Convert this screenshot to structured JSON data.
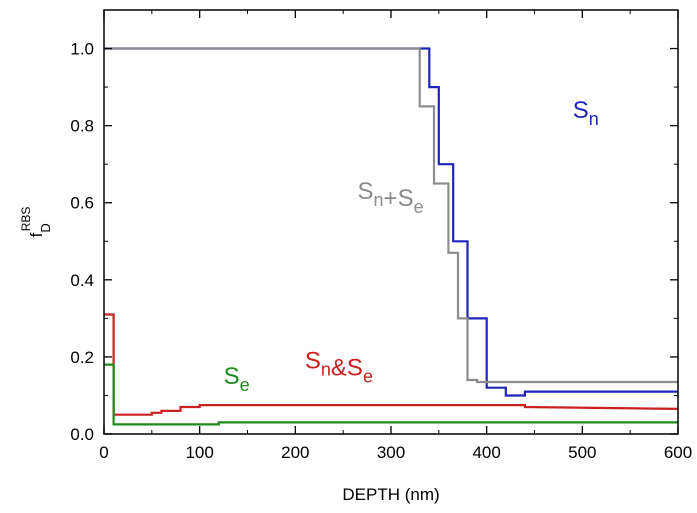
{
  "chart_data": {
    "type": "line",
    "step": true,
    "xlabel": "DEPTH  (nm)",
    "ylabel": {
      "main": "f",
      "sub": "D",
      "sup": "RBS"
    },
    "xlim": [
      0,
      600
    ],
    "ylim": [
      0,
      1.1
    ],
    "x_ticks": [
      0,
      100,
      200,
      300,
      400,
      500,
      600
    ],
    "x_tick_labels": [
      "0",
      "100",
      "200",
      "300",
      "400",
      "500",
      "600"
    ],
    "y_ticks": [
      0.0,
      0.2,
      0.4,
      0.6,
      0.8,
      1.0
    ],
    "y_tick_labels": [
      "0.0",
      "0.2",
      "0.4",
      "0.6",
      "0.8",
      "1.0"
    ],
    "grid": false,
    "series": [
      {
        "name": "Sn",
        "color": "#1f24b8",
        "x": [
          0,
          340,
          340,
          350,
          350,
          365,
          365,
          380,
          380,
          400,
          400,
          420,
          420,
          440,
          440,
          560,
          560,
          600
        ],
        "y": [
          1.0,
          1.0,
          0.9,
          0.9,
          0.7,
          0.7,
          0.5,
          0.5,
          0.3,
          0.3,
          0.12,
          0.12,
          0.1,
          0.1,
          0.11,
          0.11,
          0.11,
          0.11
        ]
      },
      {
        "name": "Sn+Se",
        "color": "#8c8c8c",
        "x": [
          0,
          330,
          330,
          345,
          345,
          360,
          360,
          370,
          370,
          380,
          380,
          390,
          390,
          600
        ],
        "y": [
          1.0,
          1.0,
          0.85,
          0.85,
          0.65,
          0.65,
          0.47,
          0.47,
          0.3,
          0.3,
          0.14,
          0.14,
          0.135,
          0.135
        ]
      },
      {
        "name": "Sn&Se",
        "color": "#cc2020",
        "x": [
          0,
          10,
          10,
          50,
          50,
          60,
          60,
          80,
          80,
          100,
          100,
          440,
          440,
          600
        ],
        "y": [
          0.31,
          0.31,
          0.05,
          0.05,
          0.055,
          0.055,
          0.06,
          0.06,
          0.07,
          0.07,
          0.075,
          0.075,
          0.07,
          0.065
        ]
      },
      {
        "name": "Se",
        "color": "#1e8a1e",
        "x": [
          0,
          10,
          10,
          120,
          120,
          600
        ],
        "y": [
          0.18,
          0.18,
          0.025,
          0.025,
          0.03,
          0.03
        ]
      }
    ],
    "annotations": [
      {
        "series": "Sn",
        "main": "S",
        "sub": "n",
        "x": 490,
        "y": 0.82,
        "color": "#1f24b8"
      },
      {
        "series": "Sn+Se",
        "parts": [
          [
            "S",
            "n"
          ],
          [
            "+S",
            "e"
          ]
        ],
        "x": 265,
        "y": 0.61,
        "color": "#8c8c8c"
      },
      {
        "series": "Sn&Se",
        "parts": [
          [
            "S",
            "n"
          ],
          [
            "&S",
            "e"
          ]
        ],
        "x": 210,
        "y": 0.17,
        "color": "#cc2020"
      },
      {
        "series": "Se",
        "main": "S",
        "sub": "e",
        "x": 125,
        "y": 0.13,
        "color": "#1e8a1e"
      }
    ]
  }
}
